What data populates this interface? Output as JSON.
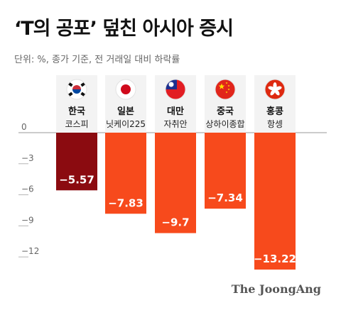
{
  "header": {
    "title": "‘T의 공포’ 덮친 아시아 증시",
    "subtitle": "단위: %, 종가 기준, 전 거래일 대비 하락률"
  },
  "source": "The JoongAng",
  "colors": {
    "korea_bar": "#8b0b10",
    "other_bars": "#f74a1c",
    "zero_line": "#9a9a9a",
    "tick_text": "#666666",
    "value_text": "#ffffff"
  },
  "chart_data": {
    "type": "bar",
    "title": "‘T의 공포’ 덮친 아시아 증시",
    "subtitle": "단위: %, 종가 기준, 전 거래일 대비 하락률",
    "categories": [
      {
        "country": "한국",
        "index": "코스피",
        "flag": "korea-flag"
      },
      {
        "country": "일본",
        "index": "닛케이225",
        "flag": "japan-flag"
      },
      {
        "country": "대만",
        "index": "자취안",
        "flag": "taiwan-flag"
      },
      {
        "country": "중국",
        "index": "상하이종합",
        "flag": "china-flag"
      },
      {
        "country": "홍콩",
        "index": "항셍",
        "flag": "hongkong-flag"
      }
    ],
    "values": [
      -5.57,
      -7.83,
      -9.7,
      -7.34,
      -13.22
    ],
    "value_labels": [
      "−5.57",
      "−7.83",
      "−9.7",
      "−7.34",
      "−13.22"
    ],
    "yticks": [
      0,
      -3,
      -6,
      -9,
      -12
    ],
    "ytick_labels": [
      "0",
      "−3",
      "−6",
      "−9",
      "−12"
    ],
    "ylim": [
      -13.22,
      0
    ],
    "grid": false,
    "legend": "none"
  }
}
